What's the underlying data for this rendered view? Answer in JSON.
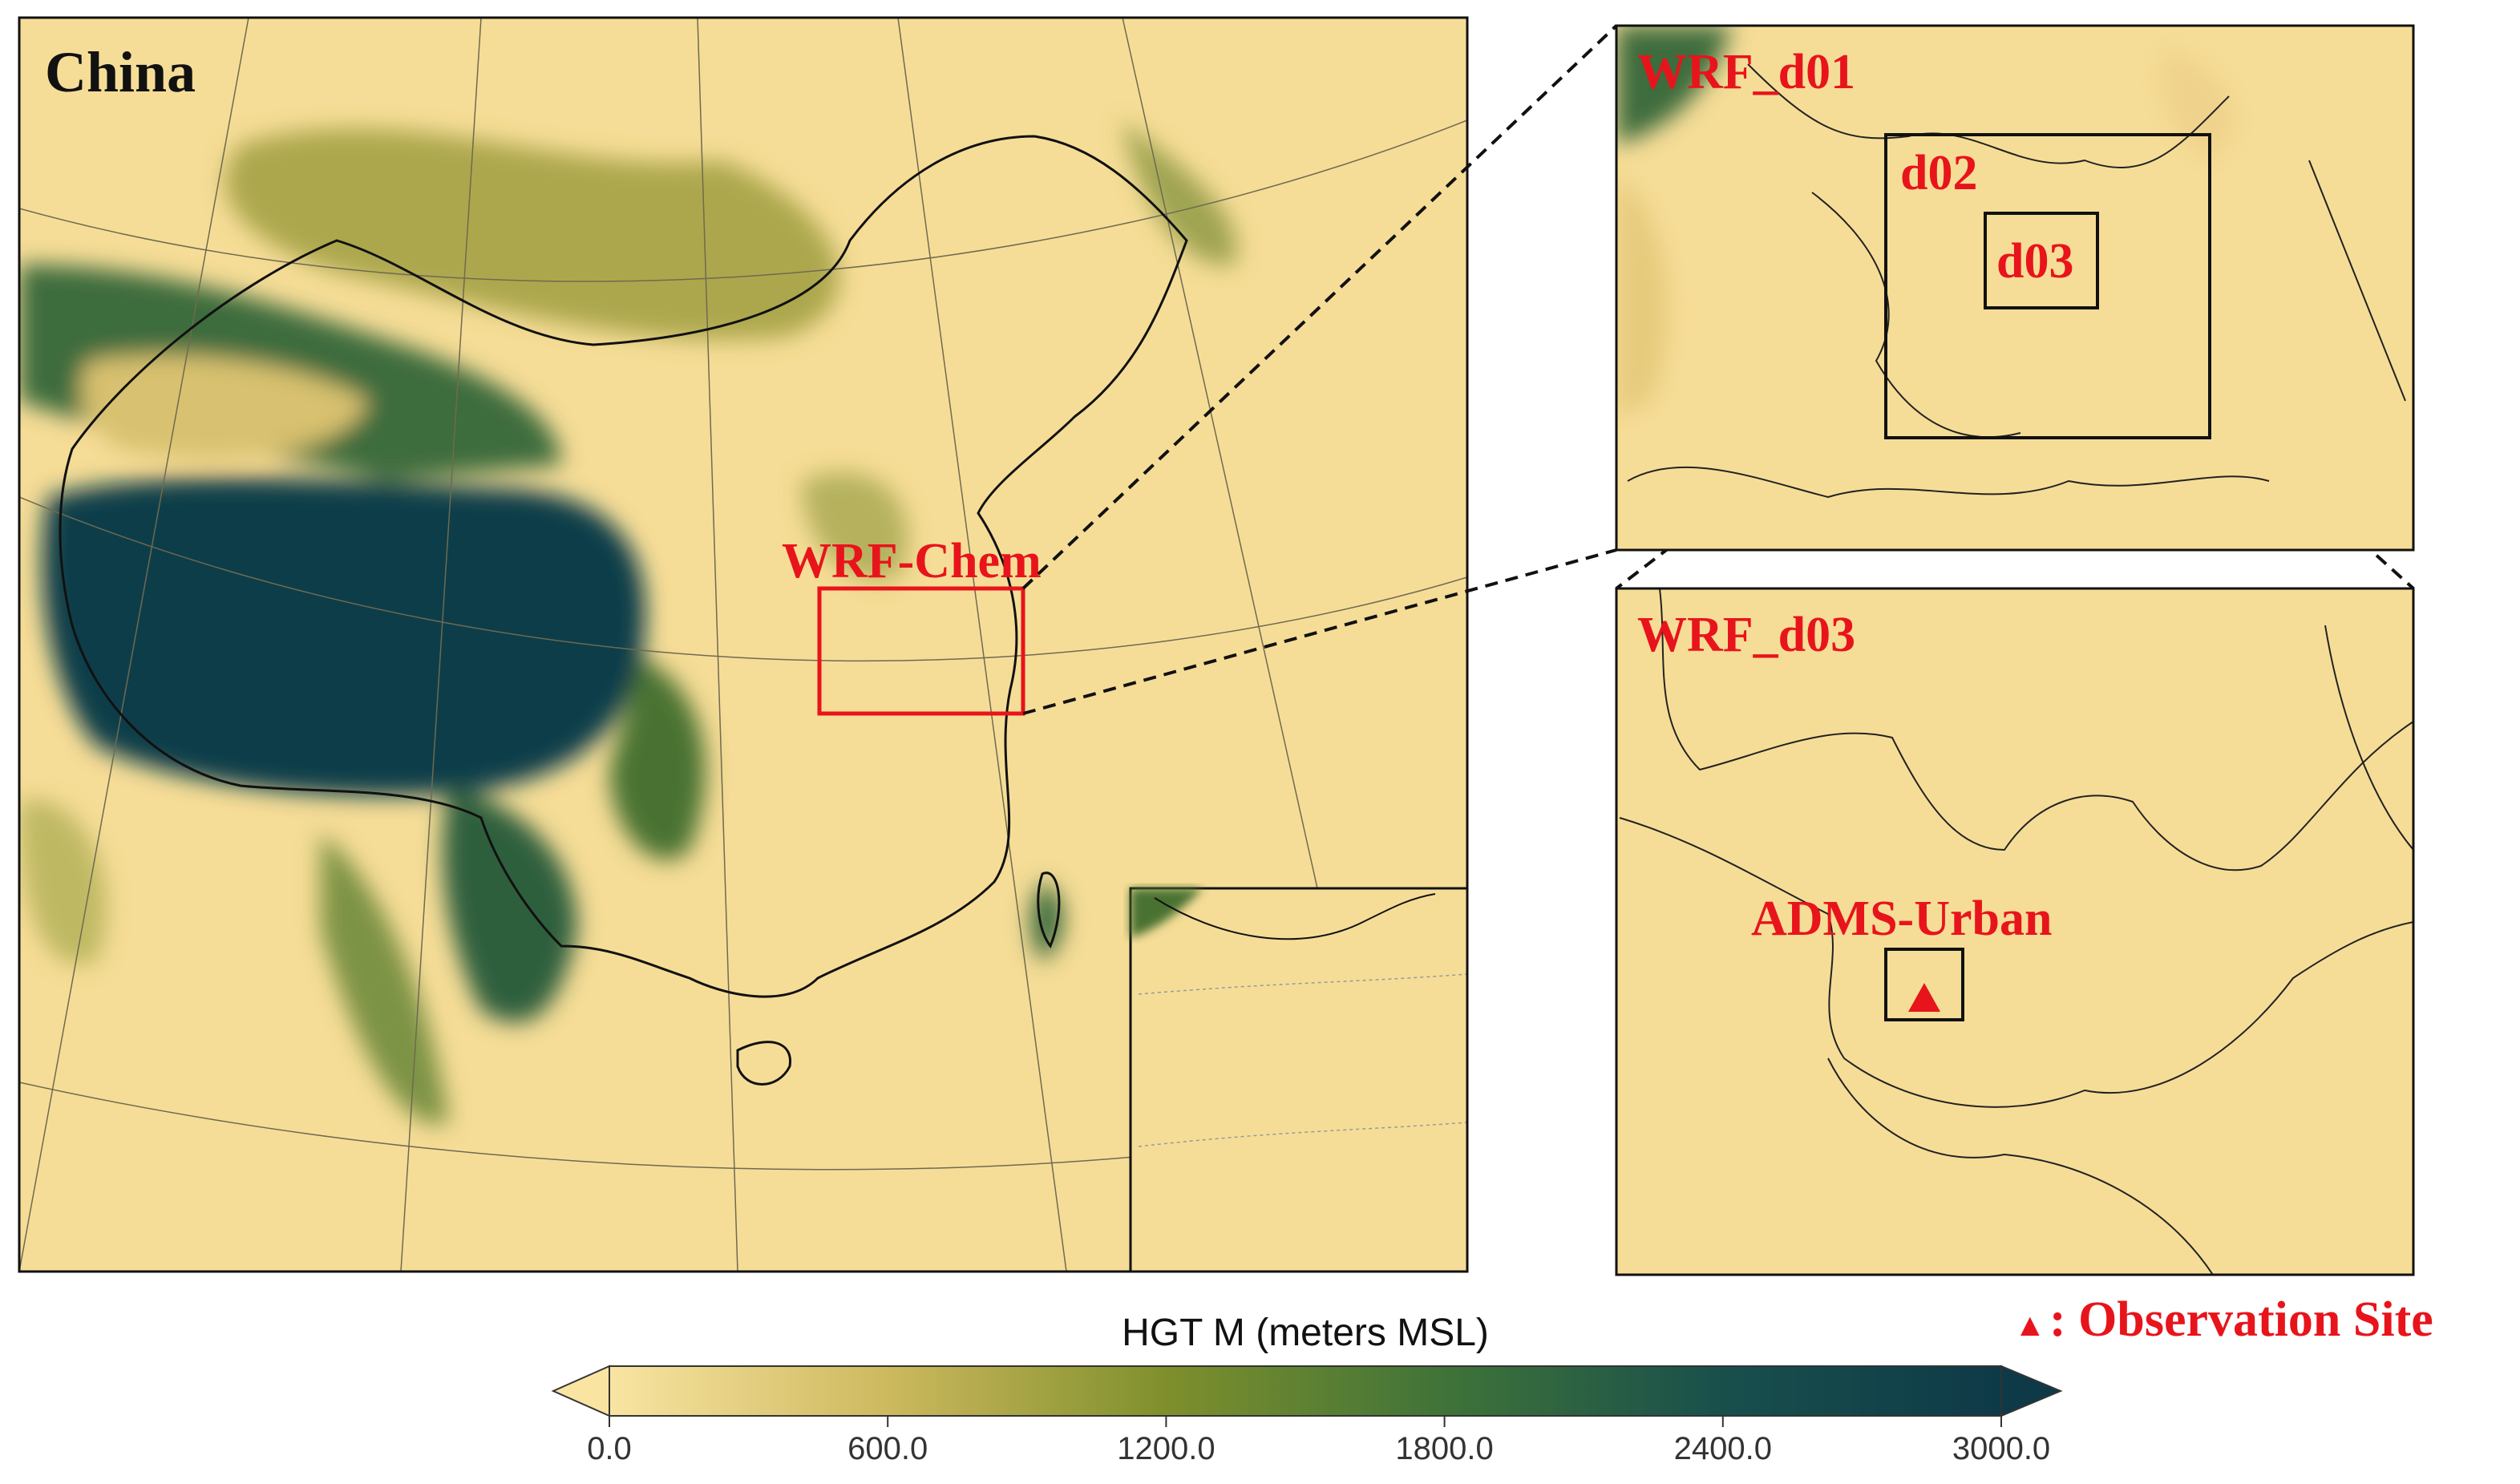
{
  "map": {
    "title": "China",
    "domain_label": "WRF-Chem"
  },
  "panel_d01": {
    "title": "WRF_d01",
    "nest_labels": [
      "d02",
      "d03"
    ]
  },
  "panel_d03": {
    "title": "WRF_d03",
    "domain_label": "ADMS-Urban"
  },
  "legend": {
    "marker": "▲",
    "label": ": Observation Site"
  },
  "colorbar": {
    "title": "HGT M (meters MSL)",
    "lim": [
      0,
      3000
    ],
    "ticks": [
      {
        "value": 0,
        "label": "0.0"
      },
      {
        "value": 600,
        "label": "600.0"
      },
      {
        "value": 1200,
        "label": "1200.0"
      },
      {
        "value": 1800,
        "label": "1800.0"
      },
      {
        "value": 2400,
        "label": "2400.0"
      },
      {
        "value": 3000,
        "label": "3000.0"
      }
    ],
    "colors": [
      "#f9e4a2",
      "#cdb95e",
      "#7f8f2c",
      "#3f7338",
      "#184f4c",
      "#0e3a48"
    ]
  }
}
